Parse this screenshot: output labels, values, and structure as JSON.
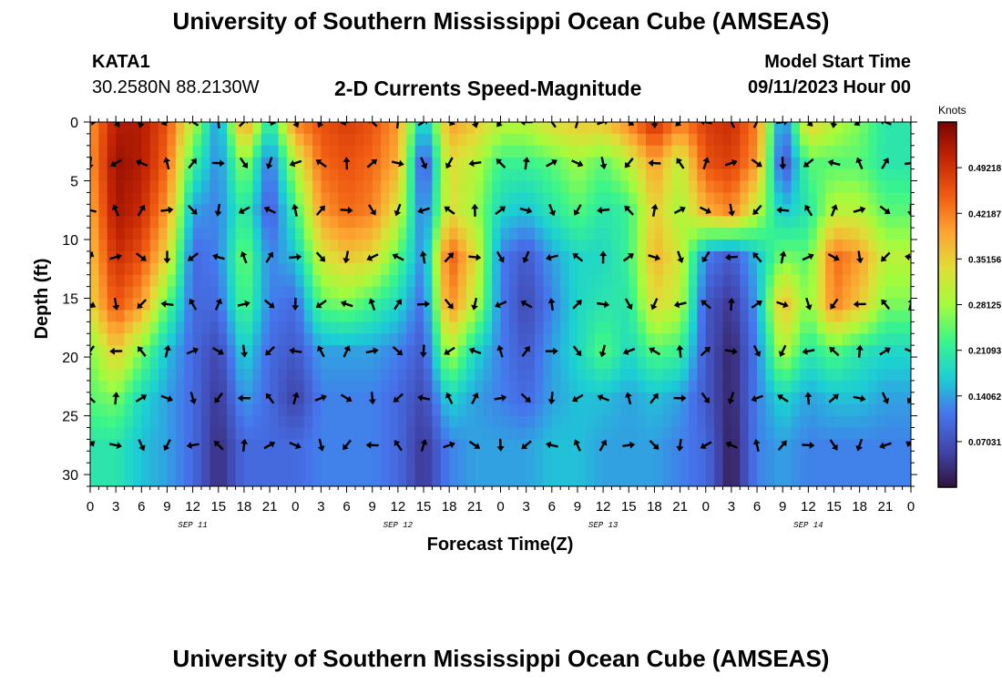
{
  "header": {
    "title": "University of Southern Mississippi Ocean Cube (AMSEAS)",
    "station_id": "KATA1",
    "station_coords": "30.2580N  88.2130W",
    "chart_title": "2-D Currents Speed-Magnitude",
    "model_start_label": "Model Start Time",
    "model_start_value": "09/11/2023 Hour 00"
  },
  "footer": {
    "title": "University of Southern Mississippi Ocean Cube (AMSEAS)"
  },
  "chart_data": {
    "type": "heatmap",
    "title": "2-D Currents Speed-Magnitude",
    "xlabel": "Forecast Time(Z)",
    "ylabel": "Depth (ft)",
    "x_range_hours": [
      0,
      96
    ],
    "x_tick_labels": [
      "0",
      "3",
      "6",
      "9",
      "12",
      "15",
      "18",
      "21",
      "0",
      "3",
      "6",
      "9",
      "12",
      "15",
      "18",
      "21",
      "0",
      "3",
      "6",
      "9",
      "12",
      "15",
      "18",
      "21",
      "0",
      "3",
      "6",
      "9",
      "12",
      "15",
      "18",
      "21",
      "0"
    ],
    "date_labels": [
      "SEP 11",
      "SEP 12",
      "SEP 13",
      "SEP 14"
    ],
    "y_range_ft": [
      0,
      31
    ],
    "y_tick_labels": [
      "0",
      "5",
      "10",
      "15",
      "20",
      "25",
      "30"
    ],
    "y_ticks": [
      0,
      5,
      10,
      15,
      20,
      25,
      30
    ],
    "colorbar": {
      "label": "Knots",
      "range": [
        0,
        0.5625
      ],
      "ticks": [
        0.07031,
        0.14062,
        0.21093,
        0.28125,
        0.35156,
        0.42187,
        0.49218
      ],
      "tick_labels": [
        "0.07031",
        "0.14062",
        "0.21093",
        "0.28125",
        "0.35156",
        "0.42187",
        "0.49218"
      ]
    },
    "vector_depths_ft": [
      0,
      3.5,
      7.5,
      11.5,
      15.5,
      19.5,
      23.5,
      27.5
    ],
    "vector_hours": [
      0,
      3,
      6,
      9,
      12,
      15,
      18,
      21,
      24,
      27,
      30,
      33,
      36,
      39,
      42,
      45,
      48,
      51,
      54,
      57,
      60,
      63,
      66,
      69,
      72,
      75,
      78,
      81,
      84,
      87,
      90,
      93,
      96
    ],
    "speed_profiles": [
      {
        "hour": 0,
        "speeds": [
          0.4,
          0.4,
          0.38,
          0.36,
          0.34,
          0.26,
          0.24,
          0.2
        ]
      },
      {
        "hour": 3,
        "speeds": [
          0.52,
          0.54,
          0.53,
          0.5,
          0.46,
          0.36,
          0.26,
          0.2
        ]
      },
      {
        "hour": 6,
        "speeds": [
          0.52,
          0.52,
          0.5,
          0.46,
          0.4,
          0.26,
          0.18,
          0.16
        ]
      },
      {
        "hour": 9,
        "speeds": [
          0.46,
          0.44,
          0.4,
          0.34,
          0.24,
          0.16,
          0.14,
          0.14
        ]
      },
      {
        "hour": 12,
        "speeds": [
          0.3,
          0.22,
          0.14,
          0.1,
          0.1,
          0.1,
          0.1,
          0.1
        ]
      },
      {
        "hour": 15,
        "speeds": [
          0.12,
          0.12,
          0.12,
          0.12,
          0.1,
          0.06,
          0.04,
          0.03
        ]
      },
      {
        "hour": 18,
        "speeds": [
          0.42,
          0.28,
          0.22,
          0.26,
          0.24,
          0.18,
          0.14,
          0.1
        ]
      },
      {
        "hour": 21,
        "speeds": [
          0.18,
          0.1,
          0.08,
          0.12,
          0.12,
          0.1,
          0.1,
          0.1
        ]
      },
      {
        "hour": 24,
        "speeds": [
          0.42,
          0.3,
          0.22,
          0.16,
          0.1,
          0.08,
          0.05,
          0.1
        ]
      },
      {
        "hour": 27,
        "speeds": [
          0.46,
          0.44,
          0.4,
          0.32,
          0.24,
          0.14,
          0.12,
          0.12
        ]
      },
      {
        "hour": 30,
        "speeds": [
          0.48,
          0.46,
          0.44,
          0.36,
          0.26,
          0.14,
          0.12,
          0.12
        ]
      },
      {
        "hour": 33,
        "speeds": [
          0.46,
          0.44,
          0.42,
          0.34,
          0.22,
          0.14,
          0.12,
          0.12
        ]
      },
      {
        "hour": 36,
        "speeds": [
          0.4,
          0.38,
          0.32,
          0.24,
          0.18,
          0.12,
          0.1,
          0.1
        ]
      },
      {
        "hour": 39,
        "speeds": [
          0.14,
          0.06,
          0.1,
          0.12,
          0.1,
          0.08,
          0.06,
          0.04
        ]
      },
      {
        "hour": 42,
        "speeds": [
          0.4,
          0.34,
          0.34,
          0.46,
          0.42,
          0.3,
          0.18,
          0.12
        ]
      },
      {
        "hour": 45,
        "speeds": [
          0.36,
          0.3,
          0.28,
          0.34,
          0.3,
          0.18,
          0.14,
          0.14
        ]
      },
      {
        "hour": 48,
        "speeds": [
          0.3,
          0.22,
          0.18,
          0.12,
          0.12,
          0.12,
          0.12,
          0.14
        ]
      },
      {
        "hour": 51,
        "speeds": [
          0.3,
          0.22,
          0.16,
          0.08,
          0.06,
          0.08,
          0.1,
          0.14
        ]
      },
      {
        "hour": 54,
        "speeds": [
          0.34,
          0.24,
          0.2,
          0.14,
          0.12,
          0.14,
          0.14,
          0.16
        ]
      },
      {
        "hour": 57,
        "speeds": [
          0.36,
          0.28,
          0.24,
          0.18,
          0.18,
          0.18,
          0.16,
          0.16
        ]
      },
      {
        "hour": 60,
        "speeds": [
          0.36,
          0.24,
          0.2,
          0.18,
          0.2,
          0.24,
          0.16,
          0.14
        ]
      },
      {
        "hour": 63,
        "speeds": [
          0.42,
          0.3,
          0.22,
          0.22,
          0.2,
          0.18,
          0.14,
          0.14
        ]
      },
      {
        "hour": 66,
        "speeds": [
          0.5,
          0.4,
          0.36,
          0.38,
          0.34,
          0.24,
          0.16,
          0.14
        ]
      },
      {
        "hour": 69,
        "speeds": [
          0.42,
          0.3,
          0.28,
          0.32,
          0.3,
          0.22,
          0.14,
          0.12
        ]
      },
      {
        "hour": 72,
        "speeds": [
          0.48,
          0.46,
          0.38,
          0.12,
          0.08,
          0.08,
          0.08,
          0.1
        ]
      },
      {
        "hour": 75,
        "speeds": [
          0.5,
          0.48,
          0.42,
          0.08,
          0.04,
          0.02,
          0.02,
          0.01
        ]
      },
      {
        "hour": 78,
        "speeds": [
          0.42,
          0.4,
          0.3,
          0.16,
          0.14,
          0.12,
          0.12,
          0.12
        ]
      },
      {
        "hour": 81,
        "speeds": [
          0.1,
          0.06,
          0.16,
          0.26,
          0.38,
          0.3,
          0.18,
          0.14
        ]
      },
      {
        "hour": 84,
        "speeds": [
          0.36,
          0.24,
          0.2,
          0.24,
          0.26,
          0.2,
          0.14,
          0.12
        ]
      },
      {
        "hour": 87,
        "speeds": [
          0.3,
          0.24,
          0.3,
          0.44,
          0.42,
          0.24,
          0.16,
          0.12
        ]
      },
      {
        "hour": 90,
        "speeds": [
          0.26,
          0.24,
          0.3,
          0.4,
          0.36,
          0.2,
          0.16,
          0.12
        ]
      },
      {
        "hour": 93,
        "speeds": [
          0.2,
          0.2,
          0.24,
          0.3,
          0.26,
          0.18,
          0.14,
          0.12
        ]
      },
      {
        "hour": 96,
        "speeds": [
          0.2,
          0.2,
          0.24,
          0.3,
          0.26,
          0.18,
          0.14,
          0.12
        ]
      }
    ]
  }
}
